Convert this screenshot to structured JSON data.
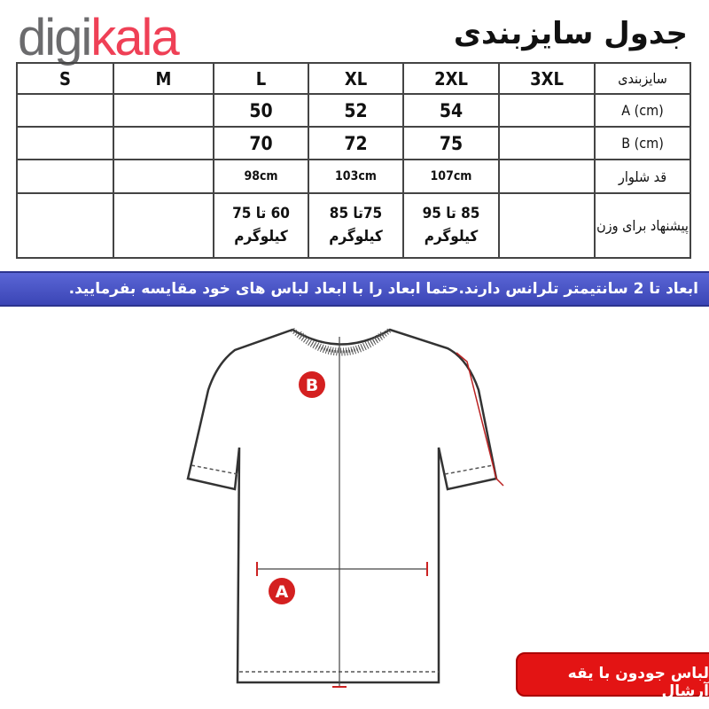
{
  "logo": {
    "part1": "digi",
    "part2": "kala"
  },
  "title": "جدول سایزبندی",
  "table": {
    "header_label": "سایزبندی",
    "sizes": [
      "S",
      "M",
      "L",
      "XL",
      "2XL",
      "3XL"
    ],
    "rows": [
      {
        "label": "A (cm)",
        "values": [
          "",
          "",
          "50",
          "52",
          "54",
          ""
        ]
      },
      {
        "label": "B (cm)",
        "values": [
          "",
          "",
          "70",
          "72",
          "75",
          ""
        ]
      },
      {
        "label": "قد شلوار",
        "values": [
          "",
          "",
          "98cm",
          "103cm",
          "107cm",
          ""
        ]
      },
      {
        "label": "پیشنهاد برای وزن",
        "values": [
          "",
          "",
          "60 تا 75 کیلوگرم",
          "75تا 85 کیلوگرم",
          "85 تا 95 کیلوگرم",
          ""
        ]
      }
    ]
  },
  "notice": "ابعاد تا 2 سانتیمتر تلرانس دارند.حتما ابعاد را با ابعاد لباس های خود مقایسه بفرمایید.",
  "diagram": {
    "marker_a": "A",
    "marker_b": "B"
  },
  "badge": "لباس جودون با یقه آرشال",
  "colors": {
    "brand_red": "#ef4056",
    "brand_gray": "#6b6b6d",
    "banner": "#4a55c4",
    "badge": "#e31414",
    "marker": "#d42020"
  }
}
